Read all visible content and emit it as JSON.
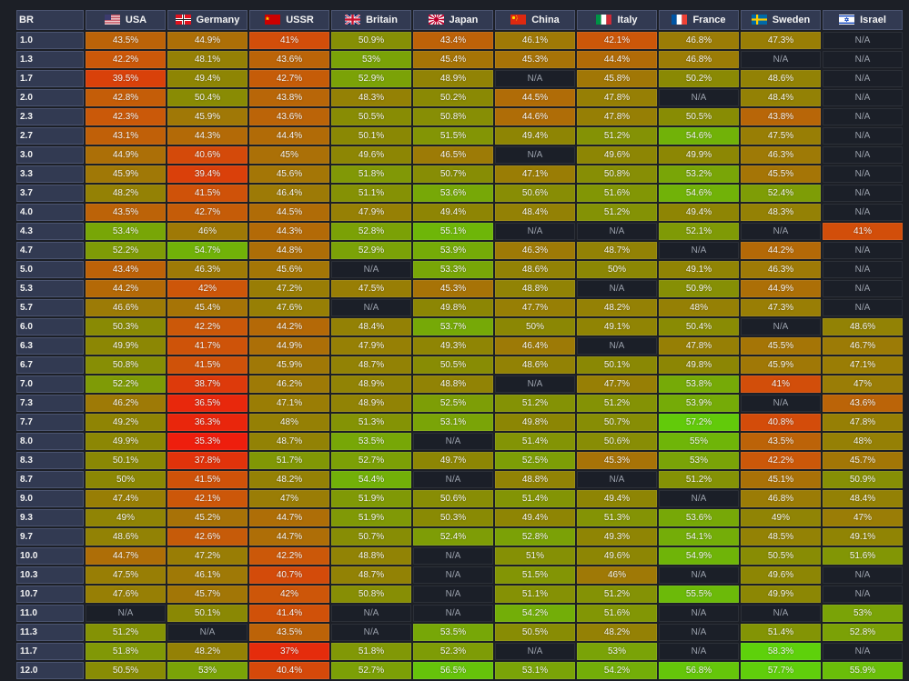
{
  "header": {
    "br_label": "BR"
  },
  "countries": [
    {
      "name": "USA",
      "icon": "us-flag-icon",
      "flag_colors": [
        "#b22234",
        "#ffffff",
        "#3c3b6e"
      ]
    },
    {
      "name": "Germany",
      "icon": "germany-flag-icon",
      "flag_colors": [
        "#e1111e",
        "#ffffff"
      ]
    },
    {
      "name": "USSR",
      "icon": "ussr-flag-icon",
      "flag_colors": [
        "#cc0000",
        "#ffd700"
      ]
    },
    {
      "name": "Britain",
      "icon": "uk-flag-icon",
      "flag_colors": [
        "#012169",
        "#ffffff",
        "#c8102e"
      ]
    },
    {
      "name": "Japan",
      "icon": "japan-flag-icon",
      "flag_colors": [
        "#ffffff",
        "#bc002d"
      ]
    },
    {
      "name": "China",
      "icon": "china-flag-icon",
      "flag_colors": [
        "#de2910",
        "#ffde00"
      ]
    },
    {
      "name": "Italy",
      "icon": "italy-flag-icon",
      "flag_colors": [
        "#009246",
        "#ffffff",
        "#ce2b37"
      ]
    },
    {
      "name": "France",
      "icon": "france-flag-icon",
      "flag_colors": [
        "#0055a4",
        "#ffffff",
        "#ef4135"
      ]
    },
    {
      "name": "Sweden",
      "icon": "sweden-flag-icon",
      "flag_colors": [
        "#006aa7",
        "#fecc00"
      ]
    },
    {
      "name": "Israel",
      "icon": "israel-flag-icon",
      "flag_colors": [
        "#ffffff",
        "#0038b8"
      ]
    }
  ],
  "colors": {
    "low": "#ef1b0d",
    "mid": "#8b8704",
    "high": "#5ed10b",
    "na": "#1b1f28",
    "header_bg": "#323a52",
    "page_bg": "#1c1f26"
  },
  "na_text": "N/A",
  "rows": [
    {
      "br": "1.0",
      "values": [
        "43.5%",
        "44.9%",
        "41%",
        "50.9%",
        "43.4%",
        "46.1%",
        "42.1%",
        "46.8%",
        "47.3%",
        "N/A"
      ]
    },
    {
      "br": "1.3",
      "values": [
        "42.2%",
        "48.1%",
        "43.6%",
        "53%",
        "45.4%",
        "45.3%",
        "44.4%",
        "46.8%",
        "N/A",
        "N/A"
      ]
    },
    {
      "br": "1.7",
      "values": [
        "39.5%",
        "49.4%",
        "42.7%",
        "52.9%",
        "48.9%",
        "N/A",
        "45.8%",
        "50.2%",
        "48.6%",
        "N/A"
      ]
    },
    {
      "br": "2.0",
      "values": [
        "42.8%",
        "50.4%",
        "43.8%",
        "48.3%",
        "50.2%",
        "44.5%",
        "47.8%",
        "N/A",
        "48.4%",
        "N/A"
      ]
    },
    {
      "br": "2.3",
      "values": [
        "42.3%",
        "45.9%",
        "43.6%",
        "50.5%",
        "50.8%",
        "44.6%",
        "47.8%",
        "50.5%",
        "43.8%",
        "N/A"
      ]
    },
    {
      "br": "2.7",
      "values": [
        "43.1%",
        "44.3%",
        "44.4%",
        "50.1%",
        "51.5%",
        "49.4%",
        "51.2%",
        "54.6%",
        "47.5%",
        "N/A"
      ]
    },
    {
      "br": "3.0",
      "values": [
        "44.9%",
        "40.6%",
        "45%",
        "49.6%",
        "46.5%",
        "N/A",
        "49.6%",
        "49.9%",
        "46.3%",
        "N/A"
      ]
    },
    {
      "br": "3.3",
      "values": [
        "45.9%",
        "39.4%",
        "45.6%",
        "51.8%",
        "50.7%",
        "47.1%",
        "50.8%",
        "53.2%",
        "45.5%",
        "N/A"
      ]
    },
    {
      "br": "3.7",
      "values": [
        "48.2%",
        "41.5%",
        "46.4%",
        "51.1%",
        "53.6%",
        "50.6%",
        "51.6%",
        "54.6%",
        "52.4%",
        "N/A"
      ]
    },
    {
      "br": "4.0",
      "values": [
        "43.5%",
        "42.7%",
        "44.5%",
        "47.9%",
        "49.4%",
        "48.4%",
        "51.2%",
        "49.4%",
        "48.3%",
        "N/A"
      ]
    },
    {
      "br": "4.3",
      "values": [
        "53.4%",
        "46%",
        "44.3%",
        "52.8%",
        "55.1%",
        "N/A",
        "N/A",
        "52.1%",
        "N/A",
        "41%"
      ]
    },
    {
      "br": "4.7",
      "values": [
        "52.2%",
        "54.7%",
        "44.8%",
        "52.9%",
        "53.9%",
        "46.3%",
        "48.7%",
        "N/A",
        "44.2%",
        "N/A"
      ]
    },
    {
      "br": "5.0",
      "values": [
        "43.4%",
        "46.3%",
        "45.6%",
        "N/A",
        "53.3%",
        "48.6%",
        "50%",
        "49.1%",
        "46.3%",
        "N/A"
      ]
    },
    {
      "br": "5.3",
      "values": [
        "44.2%",
        "42%",
        "47.2%",
        "47.5%",
        "45.3%",
        "48.8%",
        "N/A",
        "50.9%",
        "44.9%",
        "N/A"
      ]
    },
    {
      "br": "5.7",
      "values": [
        "46.6%",
        "45.4%",
        "47.6%",
        "N/A",
        "49.8%",
        "47.7%",
        "48.2%",
        "48%",
        "47.3%",
        "N/A"
      ]
    },
    {
      "br": "6.0",
      "values": [
        "50.3%",
        "42.2%",
        "44.2%",
        "48.4%",
        "53.7%",
        "50%",
        "49.1%",
        "50.4%",
        "N/A",
        "48.6%"
      ]
    },
    {
      "br": "6.3",
      "values": [
        "49.9%",
        "41.7%",
        "44.9%",
        "47.9%",
        "49.3%",
        "46.4%",
        "N/A",
        "47.8%",
        "45.5%",
        "46.7%"
      ]
    },
    {
      "br": "6.7",
      "values": [
        "50.8%",
        "41.5%",
        "45.9%",
        "48.7%",
        "50.5%",
        "48.6%",
        "50.1%",
        "49.8%",
        "45.9%",
        "47.1%"
      ]
    },
    {
      "br": "7.0",
      "values": [
        "52.2%",
        "38.7%",
        "46.2%",
        "48.9%",
        "48.8%",
        "N/A",
        "47.7%",
        "53.8%",
        "41%",
        "47%"
      ]
    },
    {
      "br": "7.3",
      "values": [
        "46.2%",
        "36.5%",
        "47.1%",
        "48.9%",
        "52.5%",
        "51.2%",
        "51.2%",
        "53.9%",
        "N/A",
        "43.6%"
      ]
    },
    {
      "br": "7.7",
      "values": [
        "49.2%",
        "36.3%",
        "48%",
        "51.3%",
        "53.1%",
        "49.8%",
        "50.7%",
        "57.2%",
        "40.8%",
        "47.8%"
      ]
    },
    {
      "br": "8.0",
      "values": [
        "49.9%",
        "35.3%",
        "48.7%",
        "53.5%",
        "N/A",
        "51.4%",
        "50.6%",
        "55%",
        "43.5%",
        "48%"
      ]
    },
    {
      "br": "8.3",
      "values": [
        "50.1%",
        "37.8%",
        "51.7%",
        "52.7%",
        "49.7%",
        "52.5%",
        "45.3%",
        "53%",
        "42.2%",
        "45.7%"
      ]
    },
    {
      "br": "8.7",
      "values": [
        "50%",
        "41.5%",
        "48.2%",
        "54.4%",
        "N/A",
        "48.8%",
        "N/A",
        "51.2%",
        "45.1%",
        "50.9%"
      ]
    },
    {
      "br": "9.0",
      "values": [
        "47.4%",
        "42.1%",
        "47%",
        "51.9%",
        "50.6%",
        "51.4%",
        "49.4%",
        "N/A",
        "46.8%",
        "48.4%"
      ]
    },
    {
      "br": "9.3",
      "values": [
        "49%",
        "45.2%",
        "44.7%",
        "51.9%",
        "50.3%",
        "49.4%",
        "51.3%",
        "53.6%",
        "49%",
        "47%"
      ]
    },
    {
      "br": "9.7",
      "values": [
        "48.6%",
        "42.6%",
        "44.7%",
        "50.7%",
        "52.4%",
        "52.8%",
        "49.3%",
        "54.1%",
        "48.5%",
        "49.1%"
      ]
    },
    {
      "br": "10.0",
      "values": [
        "44.7%",
        "47.2%",
        "42.2%",
        "48.8%",
        "N/A",
        "51%",
        "49.6%",
        "54.9%",
        "50.5%",
        "51.6%"
      ]
    },
    {
      "br": "10.3",
      "values": [
        "47.5%",
        "46.1%",
        "40.7%",
        "48.7%",
        "N/A",
        "51.5%",
        "46%",
        "N/A",
        "49.6%",
        "N/A"
      ]
    },
    {
      "br": "10.7",
      "values": [
        "47.6%",
        "45.7%",
        "42%",
        "50.8%",
        "N/A",
        "51.1%",
        "51.2%",
        "55.5%",
        "49.9%",
        "N/A"
      ]
    },
    {
      "br": "11.0",
      "values": [
        "N/A",
        "50.1%",
        "41.4%",
        "N/A",
        "N/A",
        "54.2%",
        "51.6%",
        "N/A",
        "N/A",
        "53%"
      ]
    },
    {
      "br": "11.3",
      "values": [
        "51.2%",
        "N/A",
        "43.5%",
        "N/A",
        "53.5%",
        "50.5%",
        "48.2%",
        "N/A",
        "51.4%",
        "52.8%"
      ]
    },
    {
      "br": "11.7",
      "values": [
        "51.8%",
        "48.2%",
        "37%",
        "51.8%",
        "52.3%",
        "N/A",
        "53%",
        "N/A",
        "58.3%",
        "N/A"
      ]
    },
    {
      "br": "12.0",
      "values": [
        "50.5%",
        "53%",
        "40.4%",
        "52.7%",
        "56.5%",
        "53.1%",
        "54.2%",
        "56.8%",
        "57.7%",
        "55.9%"
      ]
    }
  ]
}
